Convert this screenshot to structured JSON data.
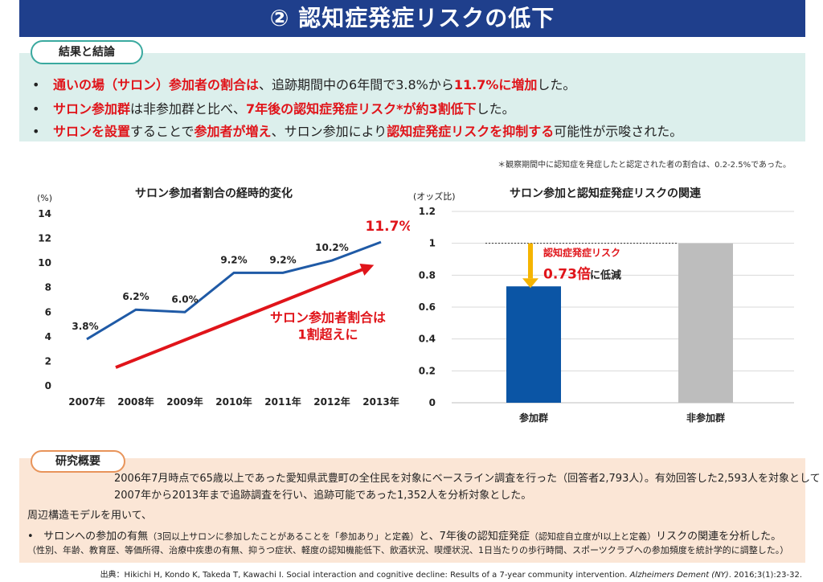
{
  "header": {
    "title": "② 認知症発症リスクの低下"
  },
  "results": {
    "label": "結果と結論",
    "bullets": [
      [
        {
          "text": "通いの場（サロン）参加者の割合は",
          "red": true
        },
        {
          "text": "、追跡期間中の6年間で3.8%から",
          "red": false
        },
        {
          "text": "11.7%に増加",
          "red": true
        },
        {
          "text": "した。",
          "red": false
        }
      ],
      [
        {
          "text": "サロン参加群",
          "red": true
        },
        {
          "text": "は非参加群と比べ、",
          "red": false
        },
        {
          "text": "7年後の認知症発症リスク*が約3割低下",
          "red": true
        },
        {
          "text": "した。",
          "red": false
        }
      ],
      [
        {
          "text": "サロンを設置",
          "red": true
        },
        {
          "text": "することで",
          "red": false
        },
        {
          "text": "参加者が増え",
          "red": true
        },
        {
          "text": "、サロン参加により",
          "red": false
        },
        {
          "text": "認知症発症リスクを抑制する",
          "red": true
        },
        {
          "text": "可能性が示唆された。",
          "red": false
        }
      ]
    ]
  },
  "footnote": "＊観察期間中に認知症を発症したと認定された者の割合は、0.2-2.5%であった。",
  "chart_data": [
    {
      "type": "line",
      "title": "サロン参加者割合の経時的変化",
      "ylabel": "(%)",
      "x": [
        "2007年",
        "2008年",
        "2009年",
        "2010年",
        "2011年",
        "2012年",
        "2013年"
      ],
      "values": [
        3.8,
        6.2,
        6.0,
        9.2,
        9.2,
        10.2,
        11.7
      ],
      "data_labels": [
        "3.8%",
        "6.2%",
        "6.0%",
        "9.2%",
        "9.2%",
        "10.2%",
        "11.7%"
      ],
      "ylim": [
        0,
        14
      ],
      "yticks": [
        0,
        2,
        4,
        6,
        8,
        10,
        12,
        14
      ],
      "line_color": "#1f5aa6",
      "highlight_color": "#e0141a",
      "arrow_label": [
        "サロン参加者割合は",
        "1割超えに"
      ]
    },
    {
      "type": "bar",
      "title": "サロン参加と認知症発症リスクの関連",
      "ylabel": "(オッズ比)",
      "categories": [
        "参加群",
        "非参加群"
      ],
      "values": [
        0.73,
        1.0
      ],
      "colors": [
        "#0b55a5",
        "#bdbdbd"
      ],
      "ylim": [
        0,
        1.2
      ],
      "yticks": [
        "0",
        "0.2",
        "0.4",
        "0.6",
        "0.8",
        "1",
        "1.2"
      ],
      "annotation": [
        "認知症発症リスク",
        "0.73倍",
        "に低減"
      ],
      "arrow_color": "#f5b400"
    }
  ],
  "overview": {
    "label": "研究概要",
    "line1": "2006年7月時点で65歳以上であった愛知県武豊町の全住民を対象にベースライン調査を行った（回答者2,793人）。有効回答した2,593人を対象として",
    "line2": "2007年から2013年まで追跡調査を行い、追跡可能であった1,352人を分析対象とした。",
    "line3": "周辺構造モデルを用いて、",
    "line4_parts": [
      {
        "text": "サロンへの参加の有無",
        "small": false
      },
      {
        "text": "（3回以上サロンに参加したことがあることを「参加あり」と定義）",
        "small": true
      },
      {
        "text": "と、7年後の認知症発症",
        "small": false
      },
      {
        "text": "（認知症自立度がⅠ以上と定義）",
        "small": true
      },
      {
        "text": "リスクの関連を分析した。",
        "small": false
      }
    ],
    "line5": "（性別、年齢、教育歴、等価所得、治療中疾患の有無、抑うつ症状、軽度の認知機能低下、飲酒状況、喫煙状況、1日当たりの歩行時間、スポーツクラブへの参加頻度を統計学的に調整した。）"
  },
  "citation": {
    "prefix": "出典：Hikichi H, Kondo K, Takeda T, Kawachi I. Social interaction and cognitive decline: Results of a 7-year community intervention. ",
    "journal": "Alzheimers Dement (NY)",
    "suffix": ". 2016;3(1):23-32."
  }
}
